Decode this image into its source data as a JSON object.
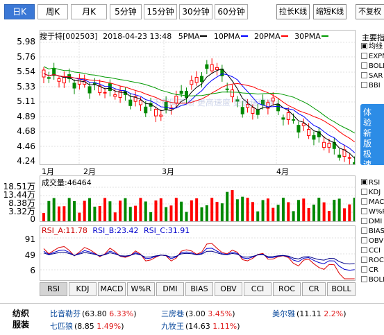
{
  "toolbar": {
    "periods": [
      "日K",
      "周K",
      "月K",
      "5分钟",
      "15分钟",
      "30分钟",
      "60分钟"
    ],
    "active_period": "日K",
    "stretch_label": "拉长K线",
    "shrink_label": "缩短K线",
    "rights_label": "不复权"
  },
  "header": {
    "stock": "搜于特[002503]",
    "datetime": "2018-04-23 13:48",
    "ma_labels": [
      "5PMA",
      "10PMA",
      "20PMA",
      "30PMA"
    ],
    "ma_colors": [
      "#000000",
      "#0000ff",
      "#ff0000",
      "#009900"
    ]
  },
  "price_axis": [
    "5.98",
    "5.76",
    "5.54",
    "5.33",
    "5.11",
    "4.89",
    "4.68",
    "4.46",
    "4.24"
  ],
  "months": [
    "1月",
    "2月",
    "3月",
    "4月"
  ],
  "watermark": "下载同花顺 更高速度 更极速精准",
  "volume": {
    "label": "成交量:",
    "value": "46464",
    "axis": [
      "18.51万",
      "13.44万",
      "8.38万",
      "3.32万",
      "0"
    ]
  },
  "rsi": {
    "a_label": "RSI_A:11.78",
    "b_label": "RSI_B:23.42",
    "c_label": "RSI_C:31.91",
    "axis": [
      "91",
      "49",
      "6"
    ]
  },
  "indicator_tabs": [
    "RSI",
    "KDJ",
    "MACD",
    "W%R",
    "DMI",
    "BIAS",
    "OBV",
    "CCI",
    "ROC",
    "CR",
    "BOLL"
  ],
  "active_indicator": "RSI",
  "side_top": {
    "title": "主要指",
    "items": [
      {
        "label": "均线",
        "checked": true
      },
      {
        "label": "EXPM",
        "checked": false
      },
      {
        "label": "BOLL",
        "checked": false
      },
      {
        "label": "SAR",
        "checked": false
      },
      {
        "label": "BBI",
        "checked": false
      }
    ]
  },
  "promo_text": "体验新版极速行情",
  "side_bottom": [
    {
      "label": "RSI",
      "checked": true
    },
    {
      "label": "KDJ",
      "checked": false
    },
    {
      "label": "MACD",
      "checked": false
    },
    {
      "label": "W%R",
      "checked": false
    },
    {
      "label": "DMI",
      "checked": false
    },
    {
      "label": "BIAS",
      "checked": false
    },
    {
      "label": "OBV",
      "checked": false
    },
    {
      "label": "CCI",
      "checked": false
    },
    {
      "label": "ROC",
      "checked": false
    },
    {
      "label": "CR",
      "checked": false
    },
    {
      "label": "BOLL",
      "checked": false
    }
  ],
  "sector": {
    "name": "纺织服装",
    "stocks": [
      {
        "name": "比音勒芬",
        "price": "63.80",
        "pct": "6.33%"
      },
      {
        "name": "三房巷",
        "price": "3.00",
        "pct": "3.45%"
      },
      {
        "name": "美尔雅",
        "price": "11.11",
        "pct": "2.2%"
      },
      {
        "name": "七匹狼",
        "price": "8.85",
        "pct": "1.49%"
      },
      {
        "name": "九牧王",
        "price": "14.63",
        "pct": "1.11%"
      }
    ]
  },
  "colors": {
    "up": "#ff0000",
    "down": "#008800",
    "accent": "#3b78d6"
  }
}
